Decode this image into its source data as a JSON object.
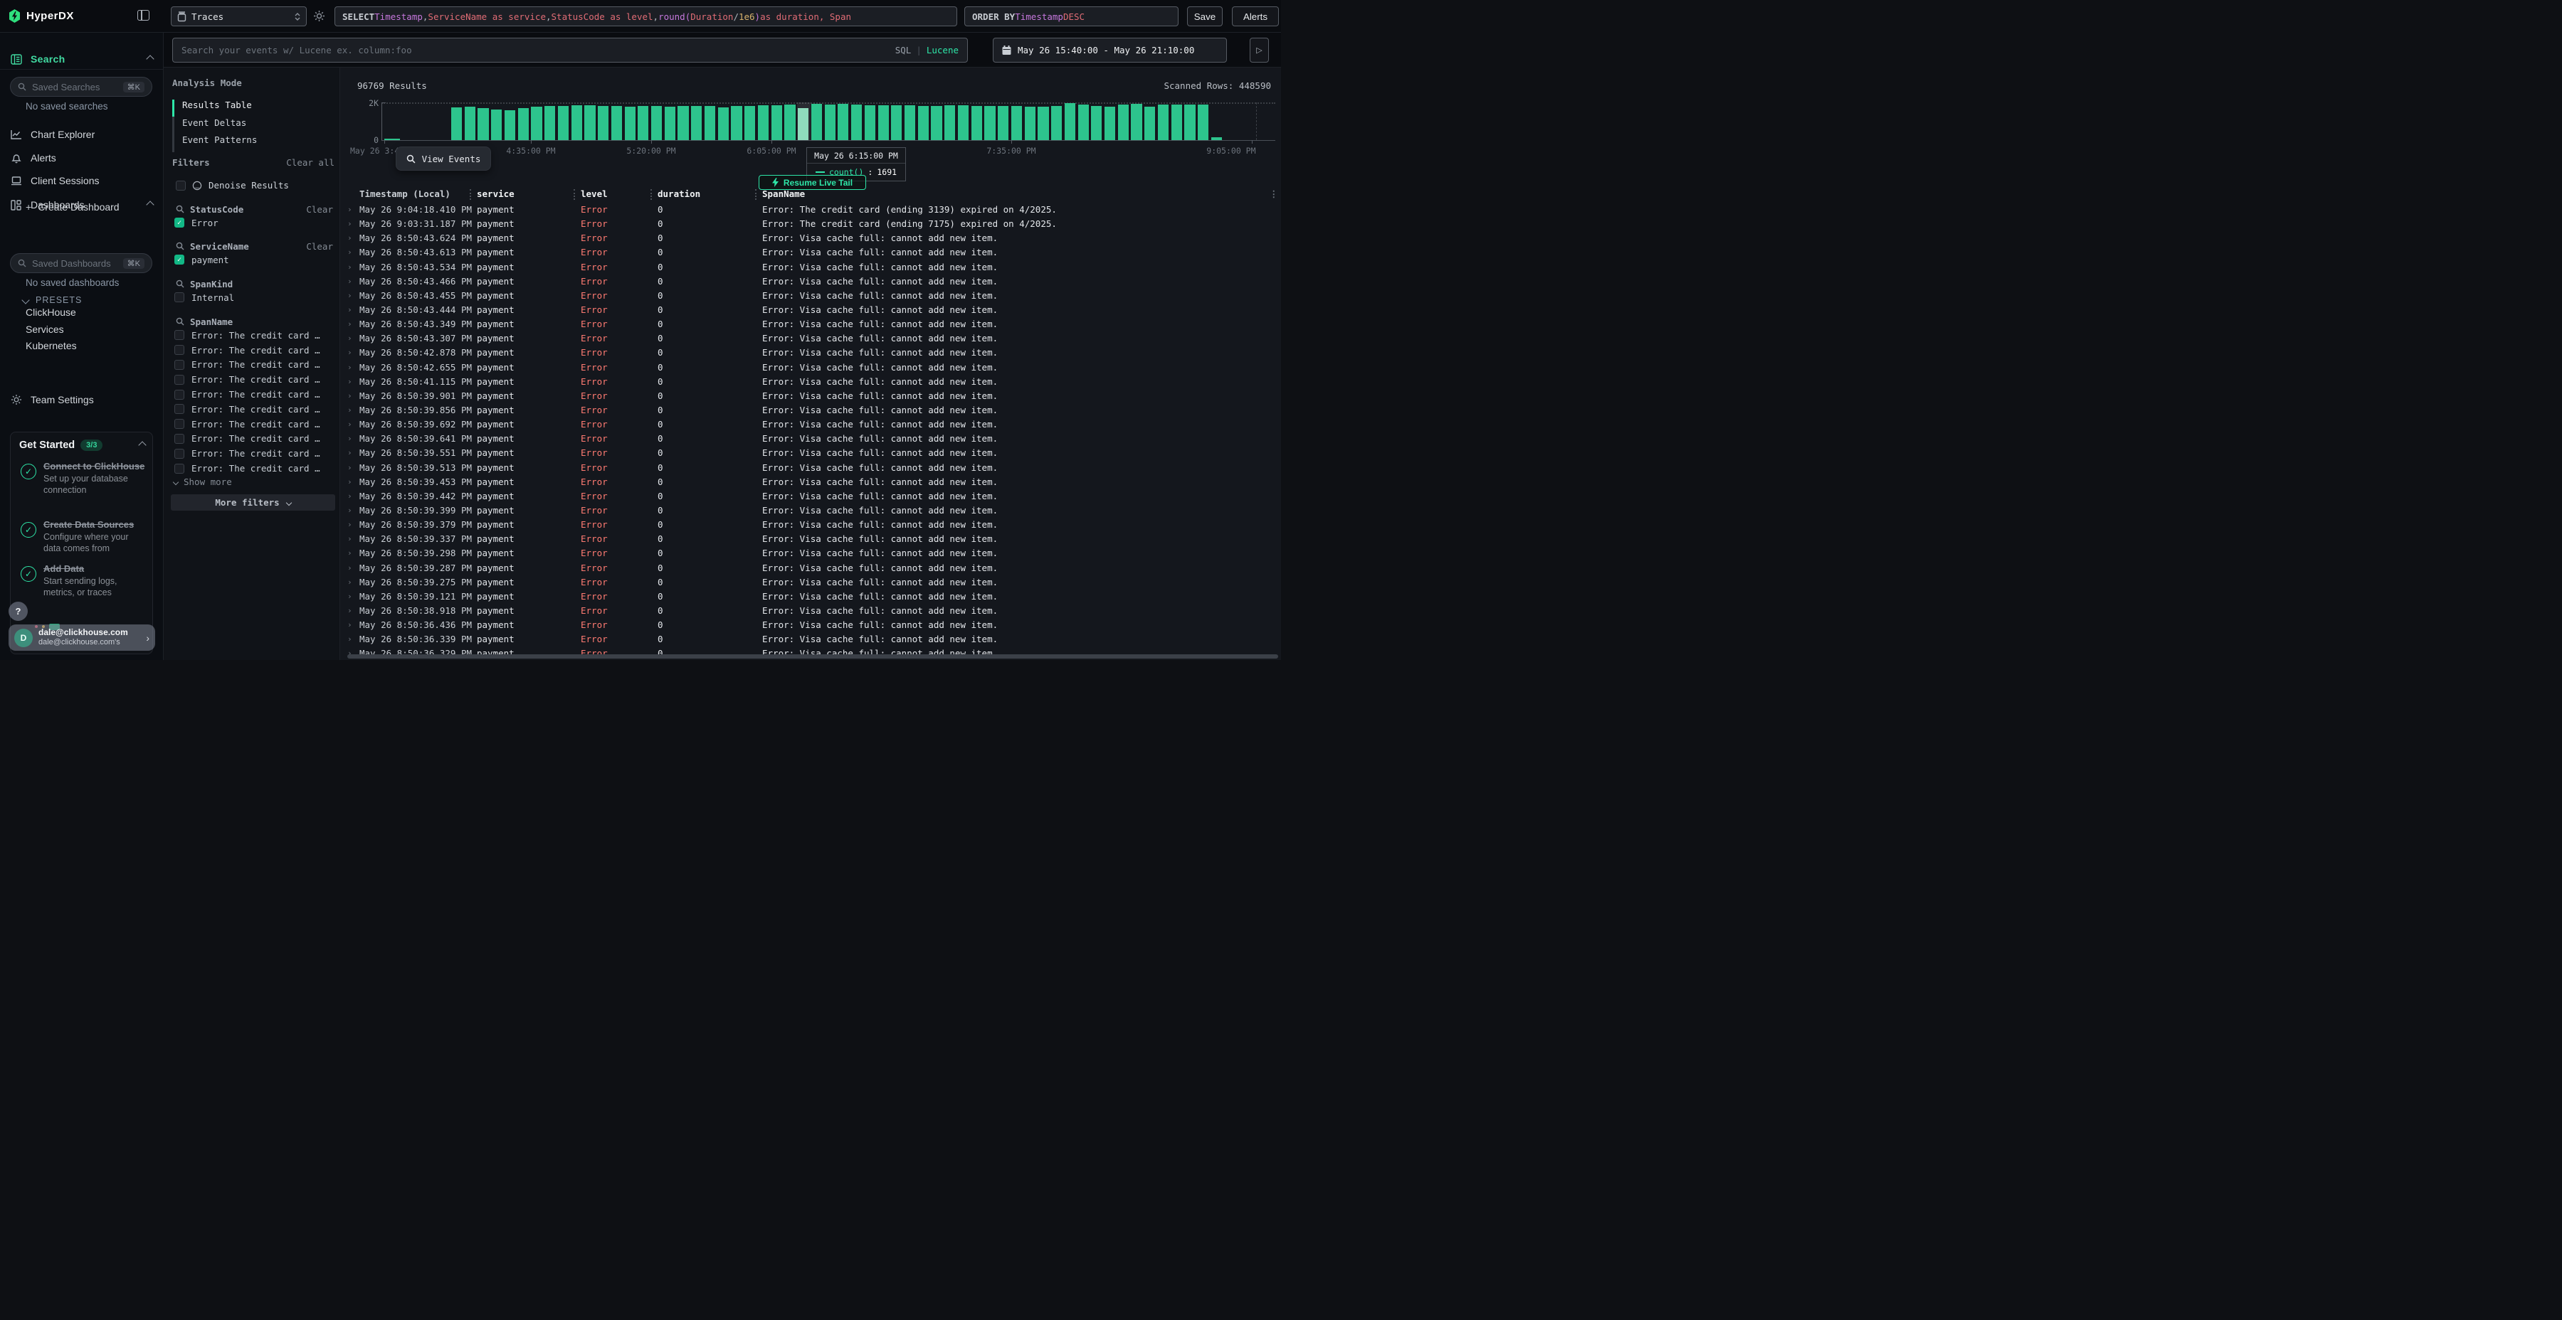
{
  "topbar": {
    "brand": "HyperDX",
    "source_label": "Traces",
    "sql_tokens": [
      {
        "t": "SELECT ",
        "c": "kw"
      },
      {
        "t": "Timestamp",
        "c": "purple"
      },
      {
        "t": ", ",
        "c": "plain"
      },
      {
        "t": "ServiceName as service",
        "c": "red"
      },
      {
        "t": ", ",
        "c": "plain"
      },
      {
        "t": "StatusCode as level",
        "c": "red"
      },
      {
        "t": ", ",
        "c": "plain"
      },
      {
        "t": "round(",
        "c": "purple"
      },
      {
        "t": "Duration",
        "c": "red"
      },
      {
        "t": " / ",
        "c": "plain"
      },
      {
        "t": "1e6",
        "c": "yellow"
      },
      {
        "t": ")",
        "c": "purple"
      },
      {
        "t": " as duration, Span",
        "c": "red"
      }
    ],
    "order_tokens": [
      {
        "t": "ORDER BY ",
        "c": "kw"
      },
      {
        "t": "Timestamp ",
        "c": "purple"
      },
      {
        "t": "DESC",
        "c": "red"
      }
    ],
    "save_label": "Save",
    "alerts_label": "Alerts"
  },
  "query_bar": {
    "search_placeholder": "Search your events w/ Lucene ex. column:foo",
    "lang_sql": "SQL",
    "lang_divider": "|",
    "lang_lucene": "Lucene",
    "time_range": "May 26 15:40:00 - May 26 21:10:00",
    "live_play": "▷"
  },
  "sidebar": {
    "search_label": "Search",
    "saved_searches_placeholder": "Saved Searches",
    "shortcut": "⌘K",
    "no_saved_searches": "No saved searches",
    "nav": [
      {
        "label": "Chart Explorer",
        "icon": "chart-line-icon"
      },
      {
        "label": "Alerts",
        "icon": "bell-icon"
      },
      {
        "label": "Client Sessions",
        "icon": "laptop-icon"
      },
      {
        "label": "Dashboards",
        "icon": "grid-icon"
      }
    ],
    "create_dashboard_plus": "+",
    "create_dashboard": "Create Dashboard",
    "saved_dashboards_placeholder": "Saved Dashboards",
    "no_saved_dashboards": "No saved dashboards",
    "presets_label": "PRESETS",
    "presets": [
      "ClickHouse",
      "Services",
      "Kubernetes"
    ],
    "team_settings": "Team Settings",
    "get_started": {
      "title": "Get Started",
      "badge": "3/3",
      "items": [
        {
          "title": "Connect to ClickHouse",
          "desc": "Set up your database connection"
        },
        {
          "title": "Create Data Sources",
          "desc": "Configure where your data comes from"
        },
        {
          "title": "Add Data",
          "desc": "Start sending logs, metrics, or traces"
        }
      ]
    },
    "help": "?",
    "user": {
      "initial": "D",
      "email": "dale@clickhouse.com",
      "org": "dale@clickhouse.com's"
    }
  },
  "filters_panel": {
    "analysis_mode_label": "Analysis Mode",
    "modes": [
      "Results Table",
      "Event Deltas",
      "Event Patterns"
    ],
    "active_mode": "Results Table",
    "filters_label": "Filters",
    "clear_all": "Clear all",
    "denoise_label": "Denoise Results",
    "groups": [
      {
        "name": "StatusCode",
        "clear": "Clear",
        "options": [
          {
            "label": "Error",
            "checked": true
          }
        ]
      },
      {
        "name": "ServiceName",
        "clear": "Clear",
        "options": [
          {
            "label": "payment",
            "checked": true
          }
        ]
      },
      {
        "name": "SpanKind",
        "clear": "",
        "options": [
          {
            "label": "Internal",
            "checked": false
          }
        ]
      },
      {
        "name": "SpanName",
        "clear": "",
        "options": [
          {
            "label": "Error: The credit card …",
            "checked": false
          },
          {
            "label": "Error: The credit card …",
            "checked": false
          },
          {
            "label": "Error: The credit card …",
            "checked": false
          },
          {
            "label": "Error: The credit card …",
            "checked": false
          },
          {
            "label": "Error: The credit card …",
            "checked": false
          },
          {
            "label": "Error: The credit card …",
            "checked": false
          },
          {
            "label": "Error: The credit card …",
            "checked": false
          },
          {
            "label": "Error: The credit card …",
            "checked": false
          },
          {
            "label": "Error: The credit card …",
            "checked": false
          },
          {
            "label": "Error: The credit card …",
            "checked": false
          }
        ]
      }
    ],
    "show_more": "Show more",
    "more_filters": "More filters"
  },
  "results": {
    "count": "96769 Results",
    "scanned": "Scanned Rows: 448590",
    "view_events": "View Events",
    "resume_live_tail": "Resume Live Tail",
    "tooltip": {
      "title": "May 26 6:15:00 PM",
      "series": "count()",
      "value": "1691"
    },
    "chart_data": {
      "type": "bar",
      "title": "",
      "xlabel": "",
      "ylabel": "",
      "ylim": [
        0,
        2000
      ],
      "y_ticks": [
        "2K",
        "0"
      ],
      "x_ticks": [
        "May 26 3:40:00 PM",
        "4:35:00 PM",
        "5:20:00 PM",
        "6:05:00 PM",
        "7:35:00 PM",
        "9:05:00 PM"
      ],
      "bar_interval_minutes": 5,
      "legend": [
        "count()"
      ],
      "highlight_index": 26,
      "highlight": {
        "time": "May 26 6:15:00 PM",
        "value": 1691
      },
      "series": [
        {
          "name": "count()",
          "start_time": "4:05 PM",
          "values": [
            1750,
            1790,
            1705,
            1640,
            1580,
            1690,
            1760,
            1800,
            1815,
            1840,
            1835,
            1825,
            1800,
            1790,
            1810,
            1795,
            1780,
            1815,
            1820,
            1830,
            1750,
            1795,
            1820,
            1840,
            1850,
            1880,
            1691,
            1940,
            1900,
            1920,
            1870,
            1850,
            1840,
            1860,
            1855,
            1830,
            1800,
            1840,
            1850,
            1795,
            1820,
            1830,
            1810,
            1780,
            1790,
            1810,
            1950,
            1890,
            1830,
            1770,
            1900,
            1910,
            1790,
            1900,
            1880,
            1870,
            1885,
            170
          ]
        }
      ]
    },
    "table": {
      "columns": [
        "Timestamp (Local)",
        "service",
        "level",
        "duration",
        "SpanName"
      ],
      "rows": [
        {
          "ts": "May 26 9:04:18.410 PM",
          "service": "payment",
          "level": "Error",
          "duration": "0",
          "span": "Error: The credit card (ending 3139) expired on 4/2025."
        },
        {
          "ts": "May 26 9:03:31.187 PM",
          "service": "payment",
          "level": "Error",
          "duration": "0",
          "span": "Error: The credit card (ending 7175) expired on 4/2025."
        },
        {
          "ts": "May 26 8:50:43.624 PM",
          "service": "payment",
          "level": "Error",
          "duration": "0",
          "span": "Error: Visa cache full: cannot add new item."
        },
        {
          "ts": "May 26 8:50:43.613 PM",
          "service": "payment",
          "level": "Error",
          "duration": "0",
          "span": "Error: Visa cache full: cannot add new item."
        },
        {
          "ts": "May 26 8:50:43.534 PM",
          "service": "payment",
          "level": "Error",
          "duration": "0",
          "span": "Error: Visa cache full: cannot add new item."
        },
        {
          "ts": "May 26 8:50:43.466 PM",
          "service": "payment",
          "level": "Error",
          "duration": "0",
          "span": "Error: Visa cache full: cannot add new item."
        },
        {
          "ts": "May 26 8:50:43.455 PM",
          "service": "payment",
          "level": "Error",
          "duration": "0",
          "span": "Error: Visa cache full: cannot add new item."
        },
        {
          "ts": "May 26 8:50:43.444 PM",
          "service": "payment",
          "level": "Error",
          "duration": "0",
          "span": "Error: Visa cache full: cannot add new item."
        },
        {
          "ts": "May 26 8:50:43.349 PM",
          "service": "payment",
          "level": "Error",
          "duration": "0",
          "span": "Error: Visa cache full: cannot add new item."
        },
        {
          "ts": "May 26 8:50:43.307 PM",
          "service": "payment",
          "level": "Error",
          "duration": "0",
          "span": "Error: Visa cache full: cannot add new item."
        },
        {
          "ts": "May 26 8:50:42.878 PM",
          "service": "payment",
          "level": "Error",
          "duration": "0",
          "span": "Error: Visa cache full: cannot add new item."
        },
        {
          "ts": "May 26 8:50:42.655 PM",
          "service": "payment",
          "level": "Error",
          "duration": "0",
          "span": "Error: Visa cache full: cannot add new item."
        },
        {
          "ts": "May 26 8:50:41.115 PM",
          "service": "payment",
          "level": "Error",
          "duration": "0",
          "span": "Error: Visa cache full: cannot add new item."
        },
        {
          "ts": "May 26 8:50:39.901 PM",
          "service": "payment",
          "level": "Error",
          "duration": "0",
          "span": "Error: Visa cache full: cannot add new item."
        },
        {
          "ts": "May 26 8:50:39.856 PM",
          "service": "payment",
          "level": "Error",
          "duration": "0",
          "span": "Error: Visa cache full: cannot add new item."
        },
        {
          "ts": "May 26 8:50:39.692 PM",
          "service": "payment",
          "level": "Error",
          "duration": "0",
          "span": "Error: Visa cache full: cannot add new item."
        },
        {
          "ts": "May 26 8:50:39.641 PM",
          "service": "payment",
          "level": "Error",
          "duration": "0",
          "span": "Error: Visa cache full: cannot add new item."
        },
        {
          "ts": "May 26 8:50:39.551 PM",
          "service": "payment",
          "level": "Error",
          "duration": "0",
          "span": "Error: Visa cache full: cannot add new item."
        },
        {
          "ts": "May 26 8:50:39.513 PM",
          "service": "payment",
          "level": "Error",
          "duration": "0",
          "span": "Error: Visa cache full: cannot add new item."
        },
        {
          "ts": "May 26 8:50:39.453 PM",
          "service": "payment",
          "level": "Error",
          "duration": "0",
          "span": "Error: Visa cache full: cannot add new item."
        },
        {
          "ts": "May 26 8:50:39.442 PM",
          "service": "payment",
          "level": "Error",
          "duration": "0",
          "span": "Error: Visa cache full: cannot add new item."
        },
        {
          "ts": "May 26 8:50:39.399 PM",
          "service": "payment",
          "level": "Error",
          "duration": "0",
          "span": "Error: Visa cache full: cannot add new item."
        },
        {
          "ts": "May 26 8:50:39.379 PM",
          "service": "payment",
          "level": "Error",
          "duration": "0",
          "span": "Error: Visa cache full: cannot add new item."
        },
        {
          "ts": "May 26 8:50:39.337 PM",
          "service": "payment",
          "level": "Error",
          "duration": "0",
          "span": "Error: Visa cache full: cannot add new item."
        },
        {
          "ts": "May 26 8:50:39.298 PM",
          "service": "payment",
          "level": "Error",
          "duration": "0",
          "span": "Error: Visa cache full: cannot add new item."
        },
        {
          "ts": "May 26 8:50:39.287 PM",
          "service": "payment",
          "level": "Error",
          "duration": "0",
          "span": "Error: Visa cache full: cannot add new item."
        },
        {
          "ts": "May 26 8:50:39.275 PM",
          "service": "payment",
          "level": "Error",
          "duration": "0",
          "span": "Error: Visa cache full: cannot add new item."
        },
        {
          "ts": "May 26 8:50:39.121 PM",
          "service": "payment",
          "level": "Error",
          "duration": "0",
          "span": "Error: Visa cache full: cannot add new item."
        },
        {
          "ts": "May 26 8:50:38.918 PM",
          "service": "payment",
          "level": "Error",
          "duration": "0",
          "span": "Error: Visa cache full: cannot add new item."
        },
        {
          "ts": "May 26 8:50:36.436 PM",
          "service": "payment",
          "level": "Error",
          "duration": "0",
          "span": "Error: Visa cache full: cannot add new item."
        },
        {
          "ts": "May 26 8:50:36.339 PM",
          "service": "payment",
          "level": "Error",
          "duration": "0",
          "span": "Error: Visa cache full: cannot add new item."
        },
        {
          "ts": "May 26 8:50:36.329 PM",
          "service": "payment",
          "level": "Error",
          "duration": "0",
          "span": "Error: Visa cache full: cannot add new item."
        }
      ]
    }
  },
  "colors": {
    "accent_green": "#2ee6a8",
    "bar_green": "#2dc48d",
    "error_red": "#ff7b72",
    "sql_purple": "#c678dd",
    "sql_red": "#e06c75",
    "sql_yellow": "#d7b26d",
    "checkbox_green": "#12b886"
  }
}
